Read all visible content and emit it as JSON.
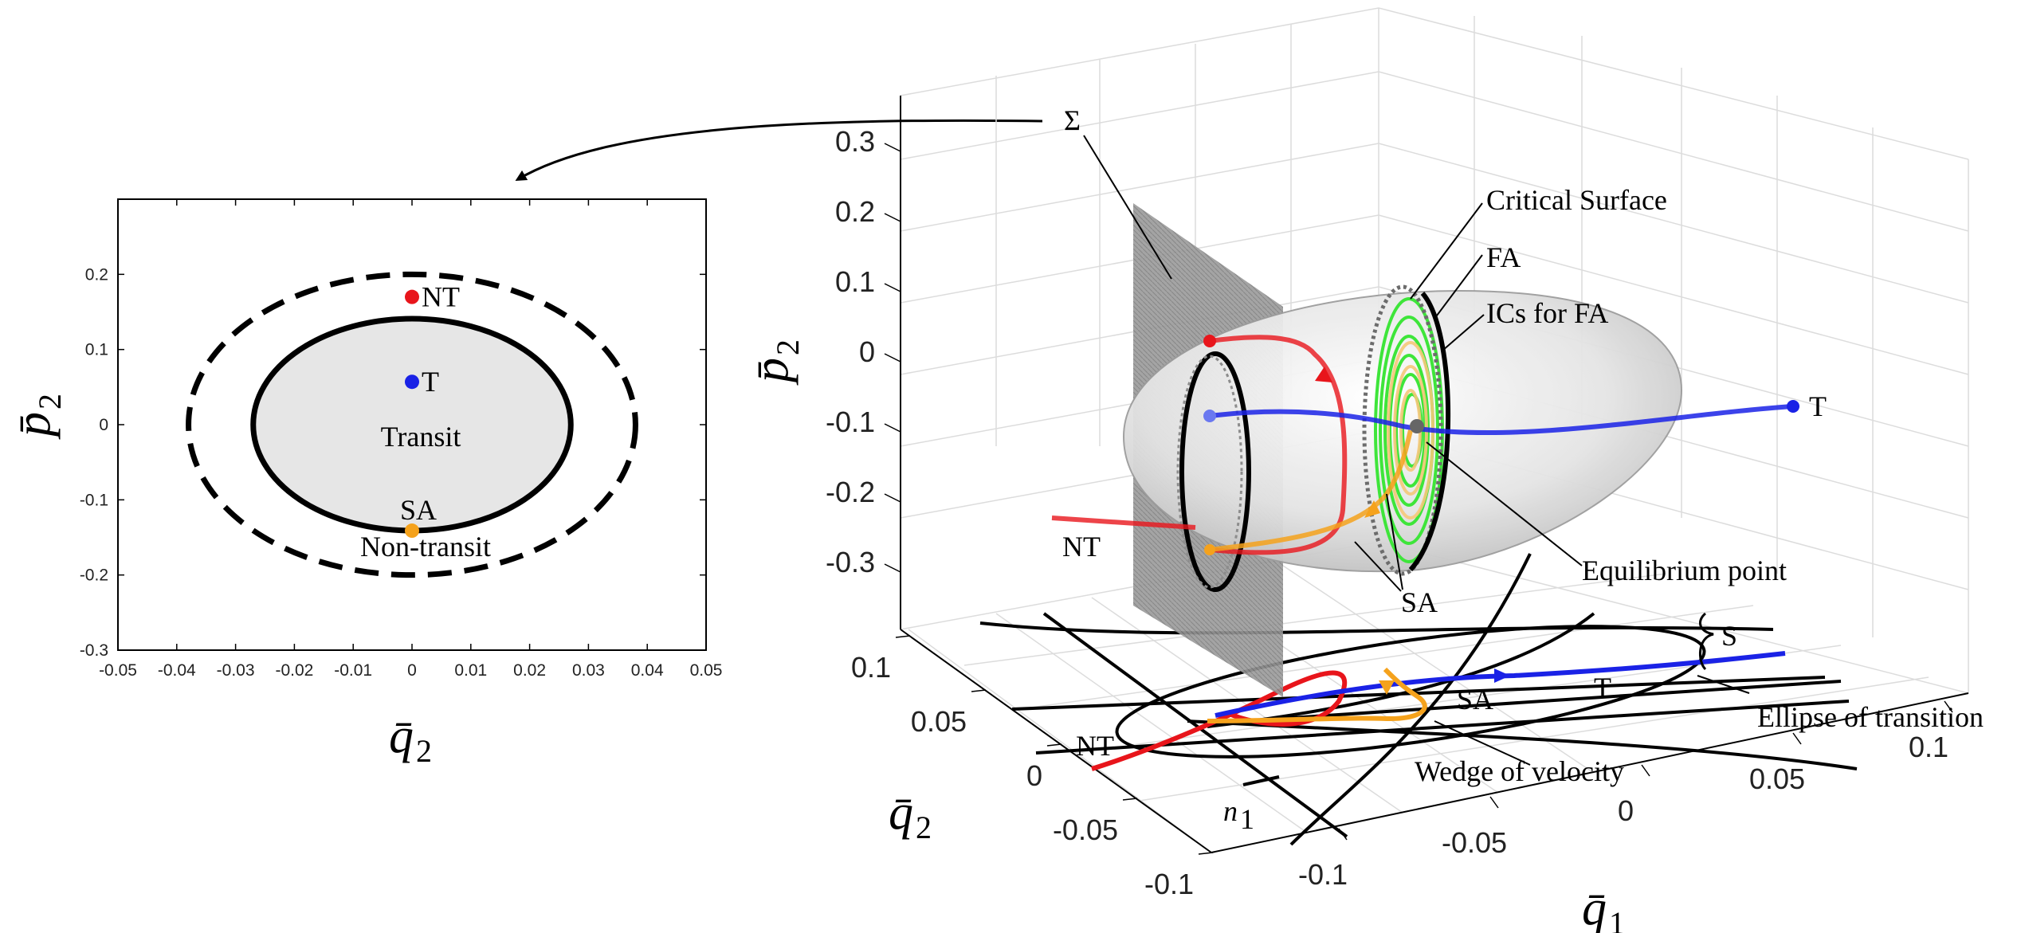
{
  "left_plot": {
    "xlabel": "q̄",
    "xlabel_sub": "2",
    "ylabel": "p̄",
    "ylabel_sub": "2",
    "xticks": [
      "-0.05",
      "-0.04",
      "-0.03",
      "-0.02",
      "-0.01",
      "0",
      "0.01",
      "0.02",
      "0.03",
      "0.04",
      "0.05"
    ],
    "yticks": [
      "0.2",
      "0.1",
      "0",
      "-0.1",
      "-0.2",
      "-0.3"
    ],
    "xlim": [
      -0.05,
      0.05
    ],
    "ylim": [
      -0.3,
      0.3
    ],
    "regions": {
      "inner": "Transit",
      "outer": "Non-transit"
    },
    "points": [
      {
        "label": "NT",
        "x": 0,
        "y": 0.17,
        "color": "#e8151b"
      },
      {
        "label": "T",
        "x": 0,
        "y": 0.057,
        "color": "#1a22e6"
      },
      {
        "label": "SA",
        "x": 0,
        "y": -0.141,
        "color": "#f5a21c"
      }
    ],
    "inner_ellipse": {
      "cx": 0,
      "cy": 0,
      "rx": 0.027,
      "ry": 0.141
    },
    "outer_ellipse": {
      "cx": 0,
      "cy": 0,
      "rx": 0.038,
      "ry": 0.2
    }
  },
  "right_plot": {
    "z_ticks": [
      "0.3",
      "0.2",
      "0.1",
      "0",
      "-0.1",
      "-0.2",
      "-0.3"
    ],
    "q2_ticks": [
      "0.1",
      "0.05",
      "0",
      "-0.05",
      "-0.1"
    ],
    "q1_ticks": [
      "-0.1",
      "-0.05",
      "0",
      "0.05",
      "0.1"
    ],
    "zlabel": "p̄",
    "zlabel_sub": "2",
    "q2label": "q̄",
    "q2label_sub": "2",
    "q1label": "q̄",
    "q1label_sub": "1",
    "annotations": {
      "sigma": "Σ",
      "critical_surface": "Critical Surface",
      "fa": "FA",
      "ics_for_fa": "ICs for FA",
      "t_upper": "T",
      "nt_upper": "NT",
      "sa_upper": "SA",
      "equilibrium": "Equilibrium point",
      "s": "S",
      "t_lower": "T",
      "sa_lower": "SA",
      "nt_lower": "NT",
      "ellipse_transition": "Ellipse of transition",
      "wedge_velocity": "Wedge of velocity",
      "n1": "n",
      "n1_sub": "1"
    }
  },
  "colors": {
    "nt": "#e8151b",
    "t": "#1a22e6",
    "sa": "#f5a21c",
    "fa": "#3ee53a",
    "transit_fill": "#e6e6e6",
    "sigma_plane": "#8c8c8c"
  }
}
